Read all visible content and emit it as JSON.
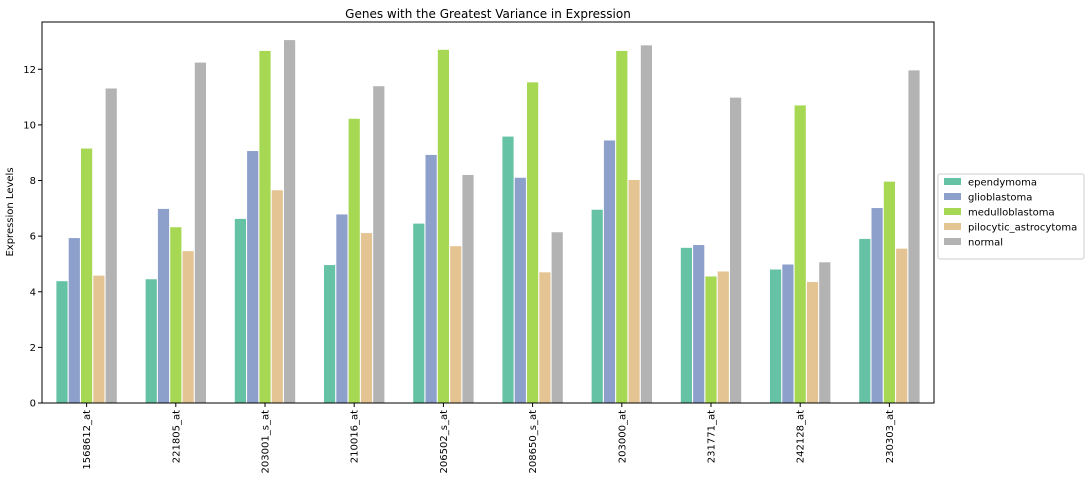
{
  "chart_data": {
    "type": "bar",
    "title": "Genes with the Greatest Variance in Expression",
    "xlabel": "",
    "ylabel": "Expression Levels",
    "ylim": [
      0,
      13.7
    ],
    "yticks": [
      0,
      2,
      4,
      6,
      8,
      10,
      12
    ],
    "grid": false,
    "legend_position": "right",
    "categories": [
      "1568612_at",
      "221805_at",
      "203001_s_at",
      "210016_at",
      "206502_s_at",
      "208650_s_at",
      "203000_at",
      "231771_at",
      "242128_at",
      "230303_at"
    ],
    "series": [
      {
        "name": "ependymoma",
        "color": "#66c2a5",
        "values": [
          4.38,
          4.45,
          6.62,
          4.96,
          6.45,
          9.58,
          6.95,
          5.58,
          4.8,
          5.9
        ]
      },
      {
        "name": "glioblastoma",
        "color": "#8da0cb",
        "values": [
          5.93,
          6.98,
          9.06,
          6.78,
          8.92,
          8.1,
          9.44,
          5.68,
          4.98,
          7.01
        ]
      },
      {
        "name": "medulloblastoma",
        "color": "#a6d854",
        "values": [
          9.15,
          6.32,
          12.66,
          10.22,
          12.7,
          11.53,
          12.66,
          4.55,
          10.7,
          7.96
        ]
      },
      {
        "name": "pilocytic_astrocytoma",
        "color": "#e5c494",
        "values": [
          4.58,
          5.46,
          7.65,
          6.11,
          5.64,
          4.7,
          8.02,
          4.73,
          4.35,
          5.55
        ]
      },
      {
        "name": "normal",
        "color": "#b3b3b3",
        "values": [
          11.31,
          12.24,
          13.05,
          11.39,
          8.2,
          6.14,
          12.86,
          10.98,
          5.06,
          11.96
        ]
      }
    ]
  }
}
